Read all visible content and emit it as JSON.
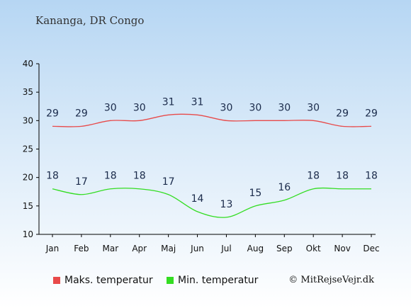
{
  "title": "Kananga, DR Congo",
  "copyright": "© MitRejseVejr.dk",
  "chart_data": {
    "type": "line",
    "categories": [
      "Jan",
      "Feb",
      "Mar",
      "Apr",
      "Maj",
      "Jun",
      "Jul",
      "Aug",
      "Sep",
      "Okt",
      "Nov",
      "Dec"
    ],
    "ylim": [
      10,
      40
    ],
    "yticks": [
      10,
      15,
      20,
      25,
      30,
      35,
      40
    ],
    "grid": false,
    "legend_position": "bottom",
    "series": [
      {
        "name": "Maks. temperatur",
        "color": "#e84a4a",
        "values": [
          29,
          29,
          30,
          30,
          31,
          31,
          30,
          30,
          30,
          30,
          29,
          29
        ]
      },
      {
        "name": "Min. temperatur",
        "color": "#33dd22",
        "values": [
          18,
          17,
          18,
          18,
          17,
          14,
          13,
          15,
          16,
          18,
          18,
          18
        ]
      }
    ]
  }
}
